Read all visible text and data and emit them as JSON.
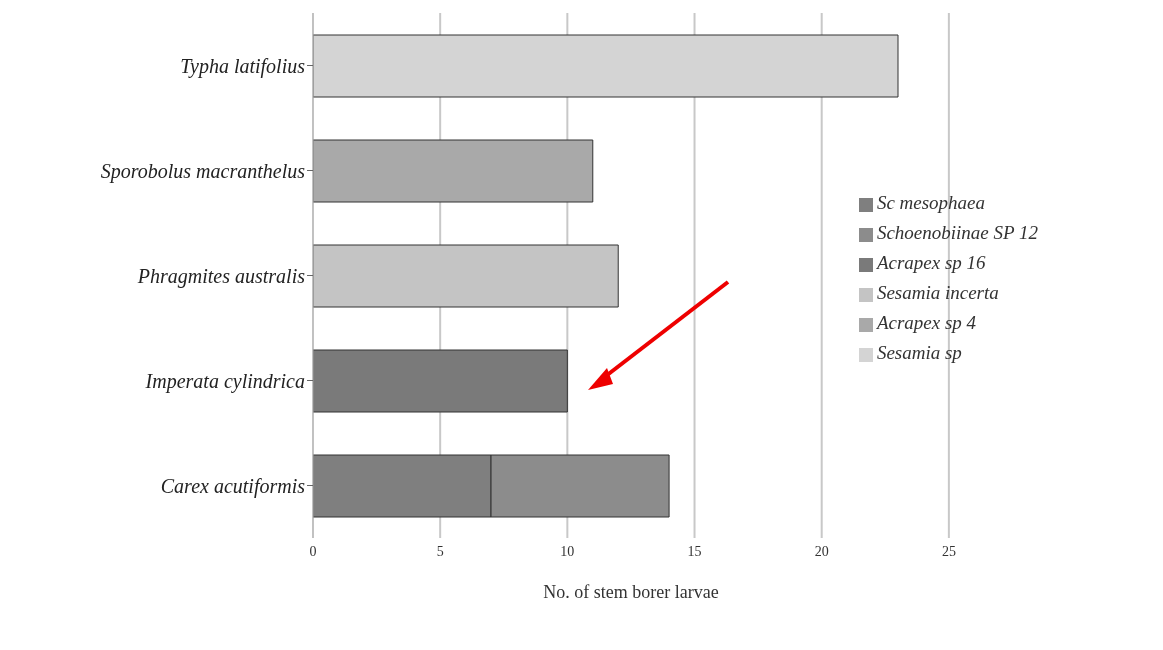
{
  "chart_data": {
    "type": "bar",
    "orientation": "horizontal",
    "stacked": true,
    "xlabel": "No. of stem borer larvae",
    "categories": [
      "Typha latifolius",
      "Sporobolus macranthelus",
      "Phragmites australis",
      "Imperata cylindrica",
      "Carex acutiformis"
    ],
    "series": [
      {
        "name": "Sc mesophaea",
        "color": "#7f7f7f",
        "values": [
          null,
          null,
          null,
          null,
          7
        ]
      },
      {
        "name": "Schoenobiinae SP 12",
        "color": "#8c8c8c",
        "values": [
          null,
          null,
          null,
          null,
          7
        ]
      },
      {
        "name": "Acrapex sp 16",
        "color": "#7a7a7a",
        "values": [
          null,
          null,
          null,
          10,
          null
        ]
      },
      {
        "name": "Sesamia incerta",
        "color": "#c4c4c4",
        "values": [
          null,
          null,
          12,
          null,
          null
        ]
      },
      {
        "name": "Acrapex sp 4",
        "color": "#a9a9a9",
        "values": [
          null,
          11,
          null,
          null,
          null
        ]
      },
      {
        "name": "Sesamia sp",
        "color": "#d4d4d4",
        "values": [
          23,
          null,
          null,
          null,
          null
        ]
      }
    ],
    "xlim": [
      0,
      25
    ],
    "xticks": [
      0,
      5,
      10,
      15,
      20,
      25
    ],
    "grid": "x",
    "legend": "right"
  }
}
